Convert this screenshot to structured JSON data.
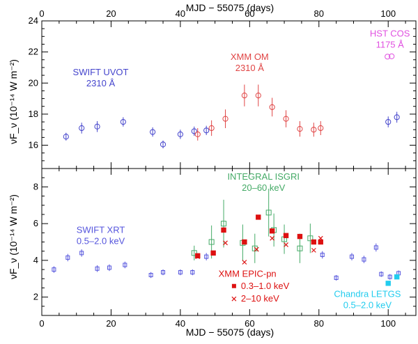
{
  "chart_data": [
    {
      "type": "scatter",
      "panel": "top",
      "x_axis": {
        "label": "MJD − 55075 (days)",
        "range": [
          0,
          108
        ],
        "ticks": [
          0,
          20,
          40,
          60,
          80,
          100
        ]
      },
      "top_axis": {
        "label": "MJD − 55075 (days)",
        "ticks": [
          0,
          20,
          40,
          60,
          80,
          100
        ]
      },
      "y_axis": {
        "label": "νF_ν (10⁻¹⁴ W m⁻²)",
        "range": [
          14.5,
          24
        ],
        "ticks": [
          16,
          18,
          20,
          22,
          24
        ]
      },
      "series": [
        {
          "name": "SWIFT UVOT 2310 Å",
          "marker": "circle",
          "color": "#4444cc",
          "label_lines": [
            "SWIFT UVOT",
            "2310 Å"
          ],
          "label_pos": [
            17,
            20.5
          ],
          "points": [
            {
              "x": 7,
              "y": 16.55,
              "err": 0.25
            },
            {
              "x": 11.5,
              "y": 17.1,
              "err": 0.35
            },
            {
              "x": 16,
              "y": 17.2,
              "err": 0.35
            },
            {
              "x": 23.5,
              "y": 17.5,
              "err": 0.3
            },
            {
              "x": 32,
              "y": 16.85,
              "err": 0.3
            },
            {
              "x": 35,
              "y": 16.05,
              "err": 0.25
            },
            {
              "x": 40,
              "y": 16.7,
              "err": 0.3
            },
            {
              "x": 44,
              "y": 16.9,
              "err": 0.3
            },
            {
              "x": 47.5,
              "y": 16.95,
              "err": 0.3
            },
            {
              "x": 100,
              "y": 17.5,
              "err": 0.35
            },
            {
              "x": 102.5,
              "y": 17.8,
              "err": 0.35
            }
          ]
        },
        {
          "name": "XMM OM 2310 Å",
          "marker": "circle",
          "color": "#e04444",
          "label_lines": [
            "XMM OM",
            "2310 Å"
          ],
          "label_pos": [
            60,
            21.5
          ],
          "points": [
            {
              "x": 45,
              "y": 16.7,
              "err": 0.4
            },
            {
              "x": 49,
              "y": 17.1,
              "err": 0.5
            },
            {
              "x": 53,
              "y": 17.7,
              "err": 0.6
            },
            {
              "x": 58.5,
              "y": 19.2,
              "err": 0.7
            },
            {
              "x": 62.5,
              "y": 19.2,
              "err": 0.7
            },
            {
              "x": 66.5,
              "y": 18.45,
              "err": 0.6
            },
            {
              "x": 70.5,
              "y": 17.7,
              "err": 0.55
            },
            {
              "x": 74.5,
              "y": 17.05,
              "err": 0.5
            },
            {
              "x": 78.5,
              "y": 17.0,
              "err": 0.45
            },
            {
              "x": 80.5,
              "y": 17.1,
              "err": 0.45
            }
          ]
        },
        {
          "name": "HST COS 1175 Å",
          "marker": "circle",
          "color": "#e050e0",
          "label_lines": [
            "HST COS",
            "1175 Å"
          ],
          "label_pos": [
            100.5,
            23.0
          ],
          "points": [
            {
              "x": 99.8,
              "y": 21.7,
              "err": 0
            },
            {
              "x": 101,
              "y": 21.72,
              "err": 0
            }
          ]
        }
      ]
    },
    {
      "type": "scatter",
      "panel": "bottom",
      "x_axis": {
        "label": "MJD − 55075 (days)",
        "range": [
          0,
          108
        ],
        "ticks": [
          0,
          20,
          40,
          60,
          80,
          100
        ]
      },
      "y_axis": {
        "label": "νF_ν (10⁻¹⁴ W m⁻²)",
        "range": [
          1,
          9
        ],
        "ticks": [
          2,
          4,
          6,
          8
        ]
      },
      "series": [
        {
          "name": "SWIFT XRT 0.5–2.0 keV",
          "marker": "square-open-small",
          "color": "#5555dd",
          "label_lines": [
            "SWIFT XRT",
            "0.5–2.0 keV"
          ],
          "label_pos": [
            17,
            5.5
          ],
          "points": [
            {
              "x": 3.5,
              "y": 3.5,
              "err": 0.18
            },
            {
              "x": 7.5,
              "y": 4.15,
              "err": 0.2
            },
            {
              "x": 11.5,
              "y": 4.4,
              "err": 0.2
            },
            {
              "x": 16,
              "y": 3.55,
              "err": 0.18
            },
            {
              "x": 19.5,
              "y": 3.6,
              "err": 0.18
            },
            {
              "x": 24,
              "y": 3.75,
              "err": 0.18
            },
            {
              "x": 31.5,
              "y": 3.2,
              "err": 0.16
            },
            {
              "x": 35,
              "y": 3.35,
              "err": 0.16
            },
            {
              "x": 40,
              "y": 3.35,
              "err": 0.16
            },
            {
              "x": 43.5,
              "y": 3.35,
              "err": 0.16
            },
            {
              "x": 47.5,
              "y": 4.2,
              "err": 0.2
            },
            {
              "x": 81,
              "y": 4.3,
              "err": 0.2
            },
            {
              "x": 85,
              "y": 3.05,
              "err": 0.15
            },
            {
              "x": 89.5,
              "y": 4.2,
              "err": 0.2
            },
            {
              "x": 93,
              "y": 4.05,
              "err": 0.2
            },
            {
              "x": 96.5,
              "y": 4.7,
              "err": 0.22
            },
            {
              "x": 98,
              "y": 3.25,
              "err": 0.15
            },
            {
              "x": 100.5,
              "y": 3.1,
              "err": 0.15
            },
            {
              "x": 103,
              "y": 3.3,
              "err": 0.15
            }
          ]
        },
        {
          "name": "INTEGRAL ISGRI 20–60 keV",
          "marker": "square-open",
          "color": "#44aa66",
          "label_lines": [
            "INTEGRAL ISGRI",
            "20–60 keV"
          ],
          "label_pos": [
            64,
            8.4
          ],
          "points": [
            {
              "x": 44,
              "y": 4.4,
              "err": 0.4
            },
            {
              "x": 49,
              "y": 5.0,
              "err": 0.9
            },
            {
              "x": 52.5,
              "y": 6.0,
              "err": 1.3
            },
            {
              "x": 58,
              "y": 4.95,
              "err": 1.0
            },
            {
              "x": 61.5,
              "y": 4.65,
              "err": 0.8
            },
            {
              "x": 65.5,
              "y": 6.6,
              "err": 1.3
            },
            {
              "x": 67,
              "y": 5.65,
              "err": 0.9
            },
            {
              "x": 70,
              "y": 5.15,
              "err": 0.8
            },
            {
              "x": 74.5,
              "y": 4.65,
              "err": 0.8
            },
            {
              "x": 77.5,
              "y": 5.2,
              "err": 0.8
            }
          ]
        },
        {
          "name": "XMM EPIC-pn 0.3–1.0 keV",
          "marker": "square-filled",
          "color": "#dd1111",
          "label_lines": [
            "0.3–1.0 keV"
          ],
          "label_pos": [
            57.5,
            2.45
          ],
          "points": [
            {
              "x": 45,
              "y": 4.25
            },
            {
              "x": 49.5,
              "y": 4.4
            },
            {
              "x": 52.5,
              "y": 5.65
            },
            {
              "x": 58.5,
              "y": 5.0
            },
            {
              "x": 62.5,
              "y": 6.35
            },
            {
              "x": 66.5,
              "y": 5.6
            },
            {
              "x": 70.5,
              "y": 5.35
            },
            {
              "x": 74.5,
              "y": 5.3
            },
            {
              "x": 78.5,
              "y": 5.0
            },
            {
              "x": 80.5,
              "y": 5.0
            }
          ]
        },
        {
          "name": "XMM EPIC-pn 2–10 keV",
          "marker": "cross",
          "color": "#dd1111",
          "label_lines": [
            "2–10 keV"
          ],
          "label_pos": [
            57.5,
            1.75
          ],
          "points": [
            {
              "x": 45,
              "y": 4.2
            },
            {
              "x": 53,
              "y": 4.95
            },
            {
              "x": 58.5,
              "y": 3.9
            },
            {
              "x": 62,
              "y": 4.6
            },
            {
              "x": 66.5,
              "y": 5.2
            },
            {
              "x": 70.5,
              "y": 4.85
            },
            {
              "x": 78.5,
              "y": 4.55
            },
            {
              "x": 80.5,
              "y": 5.2
            }
          ]
        },
        {
          "name": "Chandra LETGS 0.5–2.0 keV",
          "marker": "square-filled",
          "color": "#22ccee",
          "label_lines": [
            "Chandra LETGS",
            "0.5–2.0 keV"
          ],
          "label_pos": [
            94,
            2.0
          ],
          "points": [
            {
              "x": 100,
              "y": 2.75
            },
            {
              "x": 102.5,
              "y": 3.1
            }
          ]
        }
      ],
      "annotations": [
        {
          "text": "XMM EPIC-pn",
          "pos": [
            51,
            3.1
          ],
          "color": "#dd1111"
        }
      ]
    }
  ]
}
